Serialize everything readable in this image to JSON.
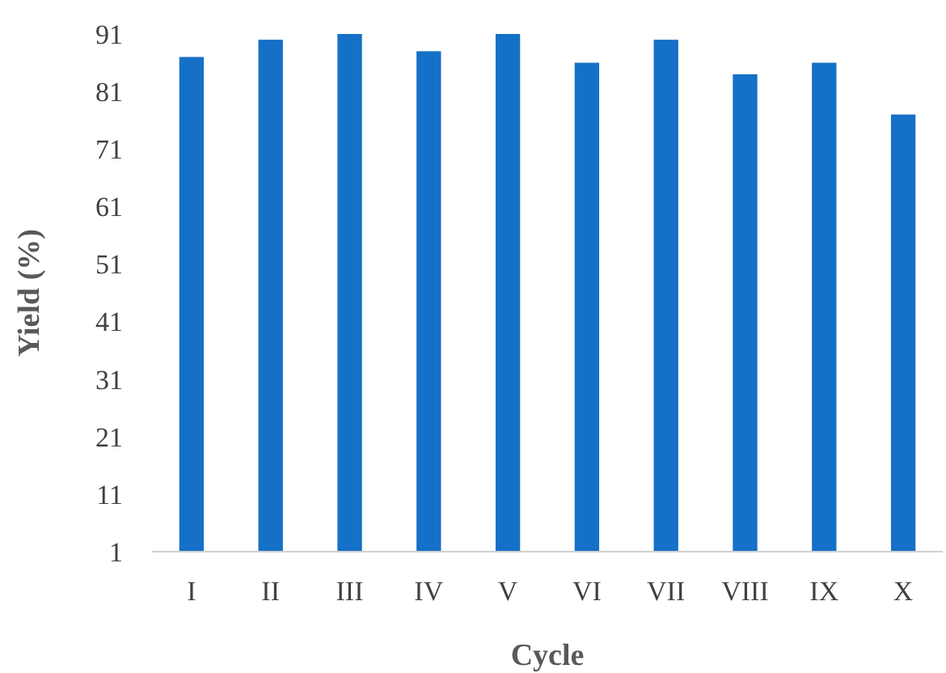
{
  "chart_data": {
    "type": "bar",
    "xlabel": "Cycle",
    "ylabel": "Yield (%)",
    "categories": [
      "I",
      "II",
      "III",
      "IV",
      "V",
      "VI",
      "VII",
      "VIII",
      "IX",
      "X"
    ],
    "values": [
      87,
      90,
      91,
      88,
      91,
      86,
      90,
      84,
      86,
      77
    ],
    "color": "#1570c8",
    "ylim": [
      1,
      91
    ],
    "yticks": [
      1,
      11,
      21,
      31,
      41,
      51,
      61,
      71,
      81,
      91
    ],
    "grid": false
  }
}
